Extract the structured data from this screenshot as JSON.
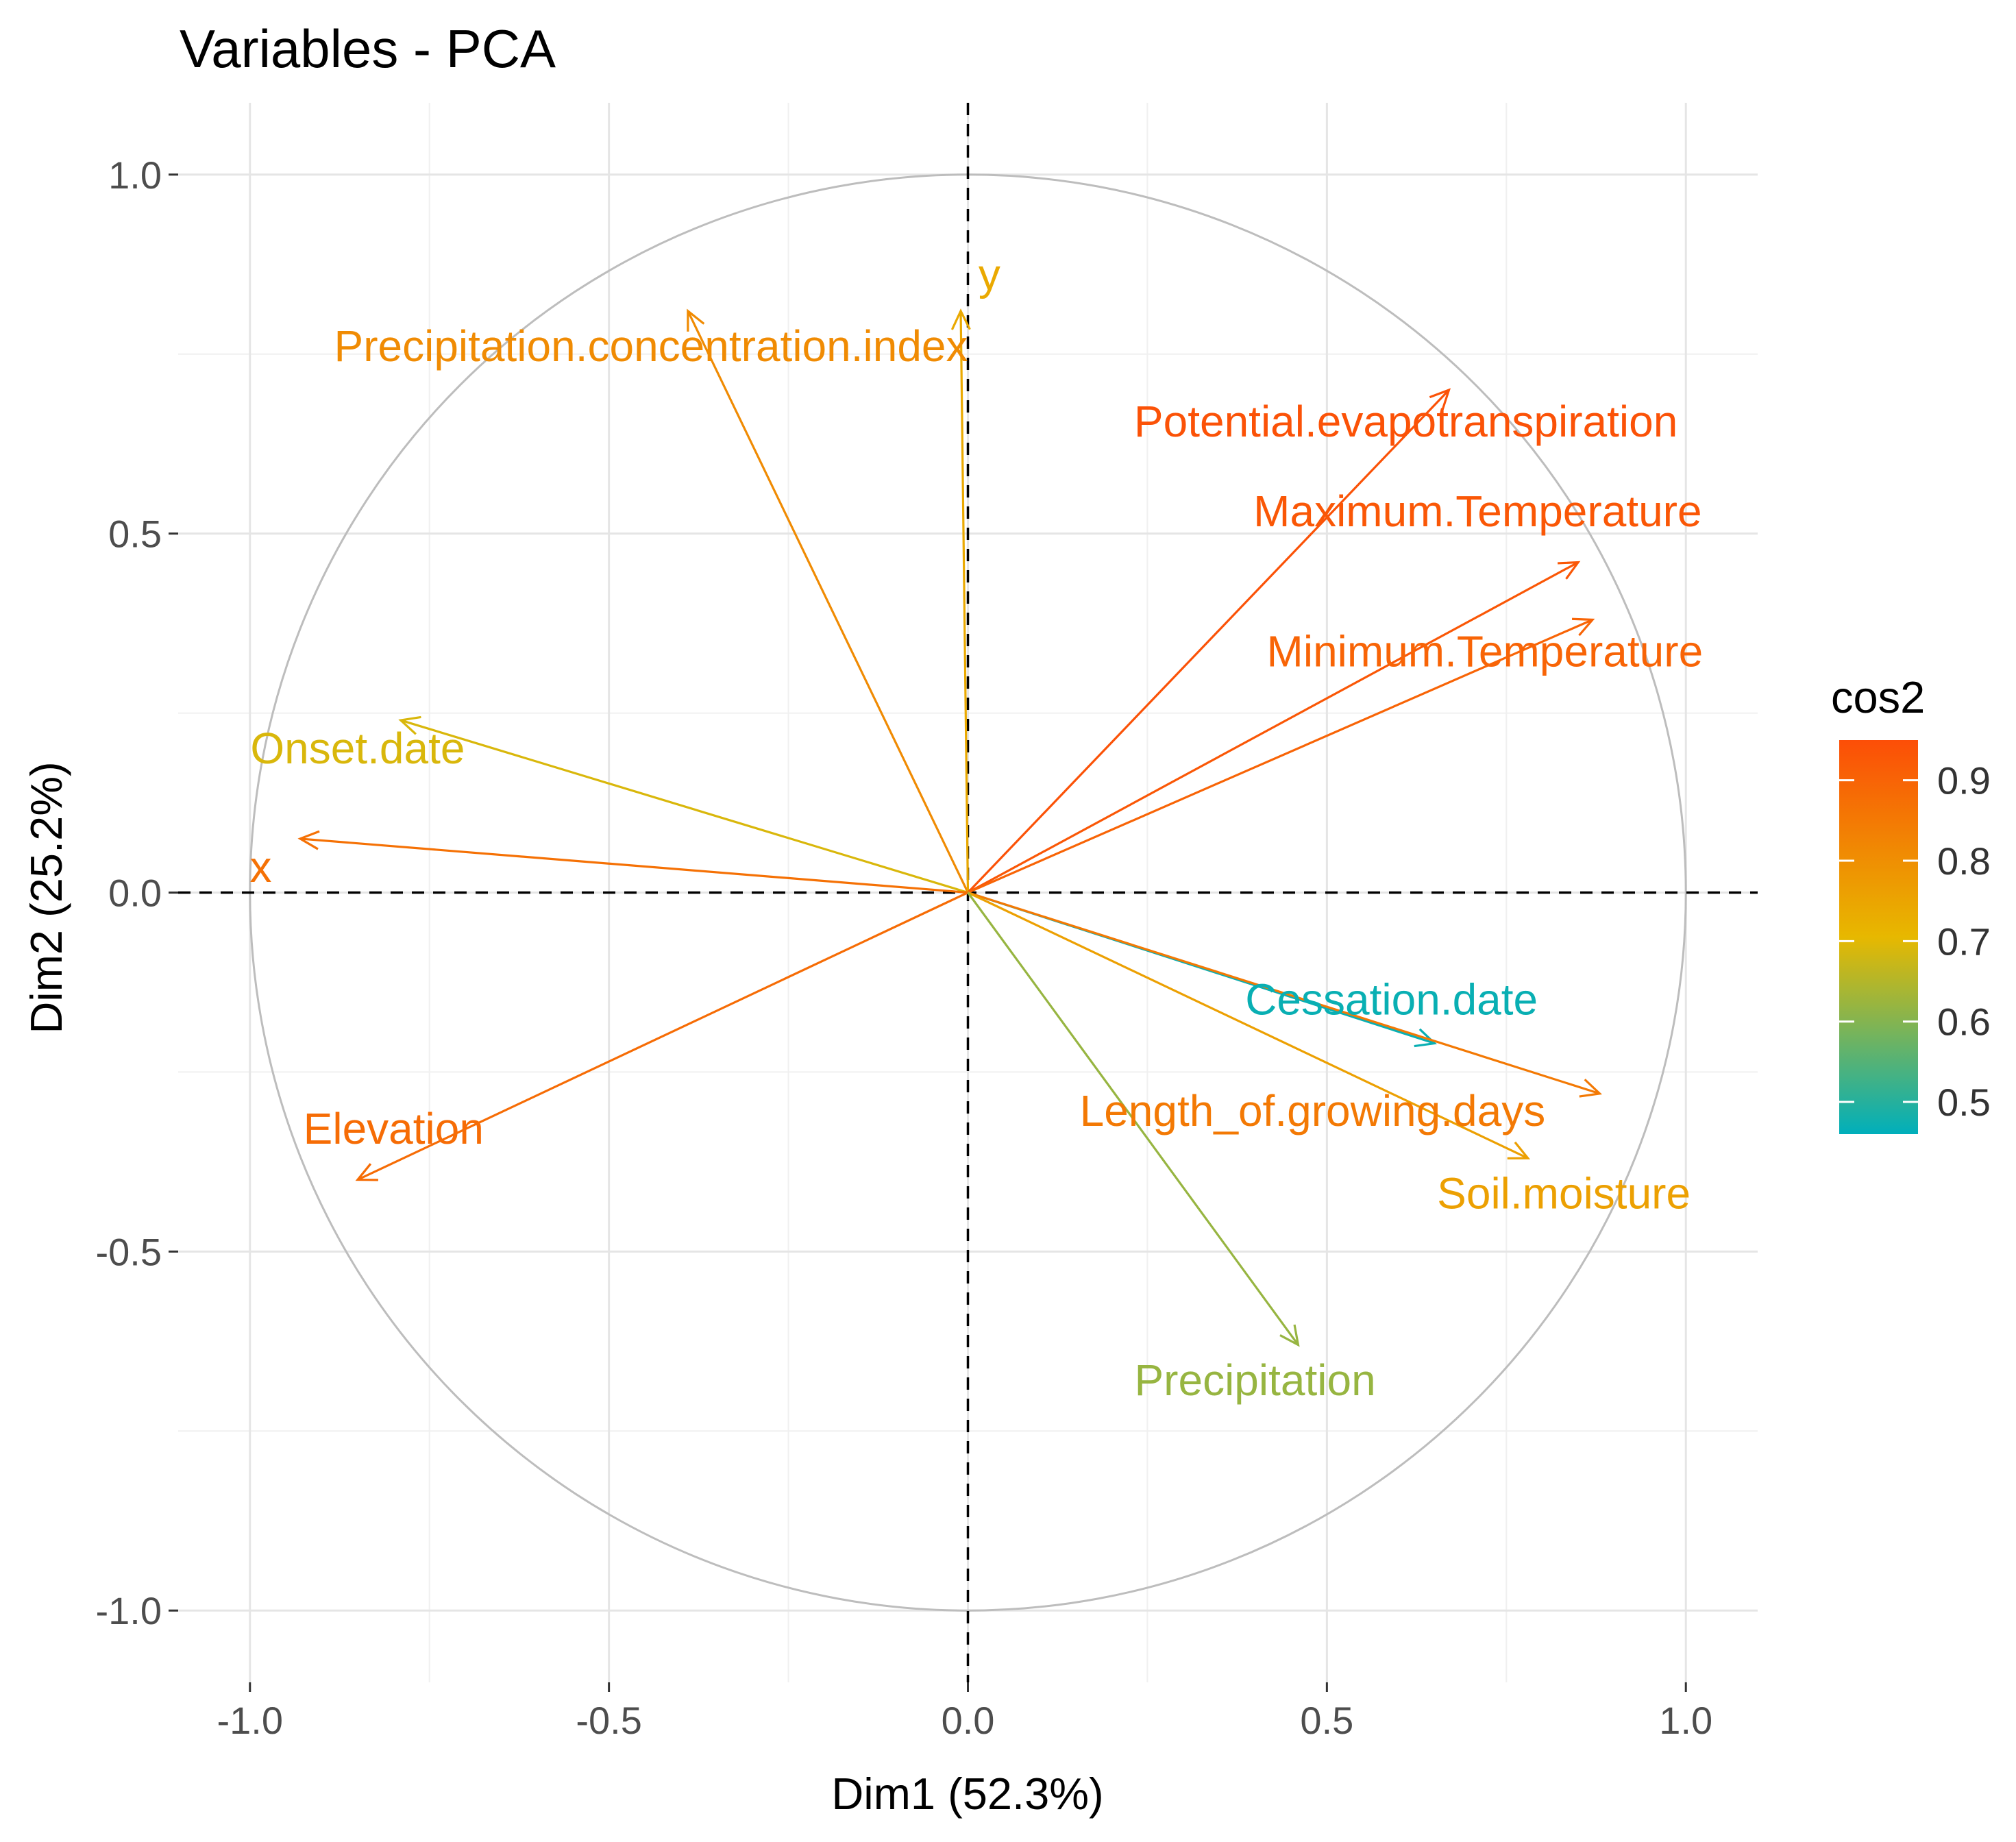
{
  "chart_data": {
    "type": "scatter",
    "title": "Variables - PCA",
    "xlabel": "Dim1 (52.3%)",
    "ylabel": "Dim2 (25.2%)",
    "xlim": [
      -1.1,
      1.1
    ],
    "ylim": [
      -1.1,
      1.1
    ],
    "x_ticks": [
      -1.0,
      -0.5,
      0.0,
      0.5,
      1.0
    ],
    "y_ticks": [
      -1.0,
      -0.5,
      0.0,
      0.5,
      1.0
    ],
    "x_tick_labels": [
      "-1.0",
      "-0.5",
      "0.0",
      "0.5",
      "1.0"
    ],
    "y_tick_labels": [
      "-1.0",
      "-0.5",
      "0.0",
      "0.5",
      "1.0"
    ],
    "grid": true,
    "correlation_circle": true,
    "legend": {
      "title": "cos2",
      "placement": "right",
      "breaks": [
        0.9,
        0.8,
        0.7,
        0.6,
        0.5
      ],
      "break_labels": [
        "0.9",
        "0.8",
        "0.7",
        "0.6",
        "0.5"
      ],
      "range": [
        0.46,
        0.95
      ],
      "gradient": [
        "#00AFBB",
        "#E7B800",
        "#FC4E07"
      ]
    },
    "series": [
      {
        "name": "Precipitation.concentration.index",
        "x": -0.39,
        "y": 0.81,
        "cos2": 0.81
      },
      {
        "name": "y",
        "x": -0.01,
        "y": 0.81,
        "cos2": 0.74
      },
      {
        "name": "Potential.evapotranspiration",
        "x": 0.67,
        "y": 0.7,
        "cos2": 0.94
      },
      {
        "name": "Maximum.Temperature",
        "x": 0.85,
        "y": 0.46,
        "cos2": 0.93
      },
      {
        "name": "Minimum.Temperature",
        "x": 0.87,
        "y": 0.38,
        "cos2": 0.9
      },
      {
        "name": "Onset.date",
        "x": -0.79,
        "y": 0.24,
        "cos2": 0.69
      },
      {
        "name": "x",
        "x": -0.93,
        "y": 0.075,
        "cos2": 0.87
      },
      {
        "name": "Elevation",
        "x": -0.85,
        "y": -0.4,
        "cos2": 0.88
      },
      {
        "name": "Cessation.date",
        "x": 0.65,
        "y": -0.21,
        "cos2": 0.47
      },
      {
        "name": "Length_of.growing.days",
        "x": 0.88,
        "y": -0.28,
        "cos2": 0.85
      },
      {
        "name": "Soil.moisture",
        "x": 0.78,
        "y": -0.37,
        "cos2": 0.76
      },
      {
        "name": "Precipitation",
        "x": 0.46,
        "y": -0.63,
        "cos2": 0.62
      }
    ]
  }
}
